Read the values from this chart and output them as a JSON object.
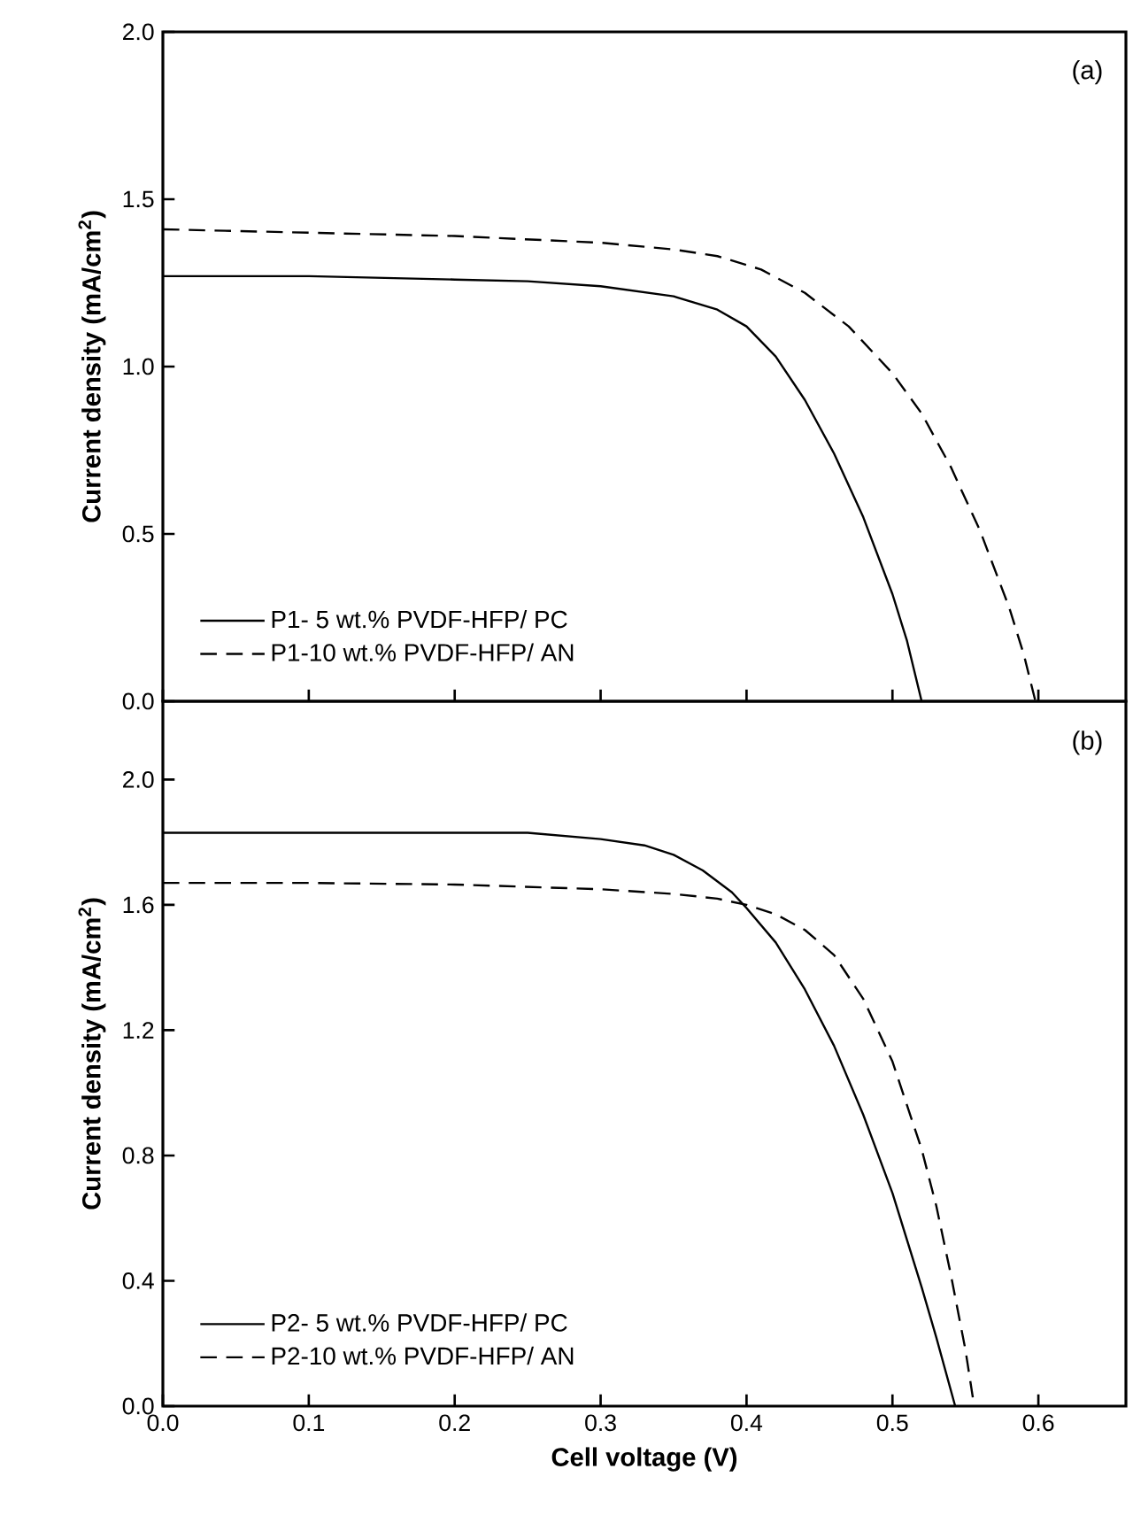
{
  "chart_data": [
    {
      "type": "line",
      "ylabel": "Current density (mA/cm$^{2}$)",
      "annotations": [
        "(a)"
      ],
      "xlim": [
        0,
        0.66
      ],
      "ylim": [
        0,
        2.0
      ],
      "xticks": [
        {
          "value": 0,
          "label": null
        },
        {
          "value": 0.1,
          "label": null
        },
        {
          "value": 0.2,
          "label": null
        },
        {
          "value": 0.3,
          "label": null
        },
        {
          "value": 0.4,
          "label": null
        },
        {
          "value": 0.5,
          "label": null
        },
        {
          "value": 0.6,
          "label": null
        }
      ],
      "yticks": [
        {
          "value": 0,
          "label": "0.0"
        },
        {
          "value": 0.5,
          "label": "0.5"
        },
        {
          "value": 1.0,
          "label": "1.0"
        },
        {
          "value": 1.5,
          "label": "1.5"
        },
        {
          "value": 2.0,
          "label": "2.0"
        }
      ],
      "tick_labels": "y",
      "legend": "bottom left",
      "grid": false,
      "marker": "none",
      "series": [
        {
          "name": "P1-  5 wt.% PVDF-HFP/ PC",
          "color": "#000000",
          "line_style": "solid",
          "x": [
            0,
            0.1,
            0.2,
            0.25,
            0.3,
            0.35,
            0.38,
            0.4,
            0.42,
            0.44,
            0.46,
            0.48,
            0.5,
            0.51,
            0.52
          ],
          "values": [
            1.27,
            1.27,
            1.26,
            1.255,
            1.24,
            1.21,
            1.17,
            1.12,
            1.03,
            0.9,
            0.74,
            0.55,
            0.32,
            0.18,
            0.0
          ]
        },
        {
          "name": "P1-10 wt.% PVDF-HFP/ AN",
          "color": "#000000",
          "line_style": "dashed",
          "x": [
            0,
            0.1,
            0.2,
            0.3,
            0.35,
            0.38,
            0.41,
            0.44,
            0.47,
            0.5,
            0.52,
            0.54,
            0.56,
            0.58,
            0.59,
            0.598
          ],
          "values": [
            1.41,
            1.4,
            1.39,
            1.37,
            1.35,
            1.33,
            1.29,
            1.22,
            1.12,
            0.98,
            0.86,
            0.7,
            0.51,
            0.28,
            0.14,
            0.0
          ]
        }
      ]
    },
    {
      "type": "line",
      "xlabel": "Cell voltage (V)",
      "ylabel": "Current density (mA/cm$^{2}$)",
      "annotations": [
        "(b)"
      ],
      "xlim": [
        0,
        0.66
      ],
      "ylim": [
        0,
        2.25
      ],
      "xticks": [
        {
          "value": 0,
          "label": "0.0"
        },
        {
          "value": 0.1,
          "label": "0.1"
        },
        {
          "value": 0.2,
          "label": "0.2"
        },
        {
          "value": 0.3,
          "label": "0.3"
        },
        {
          "value": 0.4,
          "label": "0.4"
        },
        {
          "value": 0.5,
          "label": "0.5"
        },
        {
          "value": 0.6,
          "label": "0.6"
        }
      ],
      "yticks": [
        {
          "value": 0,
          "label": "0.0"
        },
        {
          "value": 0.4,
          "label": "0.4"
        },
        {
          "value": 0.8,
          "label": "0.8"
        },
        {
          "value": 1.2,
          "label": "1.2"
        },
        {
          "value": 1.6,
          "label": "1.6"
        },
        {
          "value": 2.0,
          "label": "2.0"
        }
      ],
      "legend": "bottom left",
      "grid": false,
      "marker": "none",
      "series": [
        {
          "name": "P2-  5 wt.% PVDF-HFP/ PC",
          "color": "#000000",
          "line_style": "solid",
          "x": [
            0,
            0.1,
            0.2,
            0.25,
            0.3,
            0.33,
            0.35,
            0.37,
            0.39,
            0.4,
            0.42,
            0.44,
            0.46,
            0.48,
            0.5,
            0.52,
            0.53,
            0.543
          ],
          "values": [
            1.83,
            1.83,
            1.83,
            1.83,
            1.81,
            1.79,
            1.76,
            1.71,
            1.64,
            1.59,
            1.48,
            1.33,
            1.15,
            0.93,
            0.68,
            0.38,
            0.22,
            0.0
          ]
        },
        {
          "name": "P2-10 wt.% PVDF-HFP/ AN",
          "color": "#000000",
          "line_style": "dashed",
          "x": [
            0,
            0.1,
            0.2,
            0.3,
            0.35,
            0.38,
            0.4,
            0.42,
            0.44,
            0.46,
            0.48,
            0.5,
            0.52,
            0.53,
            0.54,
            0.55,
            0.556
          ],
          "values": [
            1.67,
            1.67,
            1.665,
            1.65,
            1.635,
            1.62,
            1.6,
            1.57,
            1.52,
            1.44,
            1.3,
            1.1,
            0.82,
            0.64,
            0.42,
            0.18,
            0.0
          ]
        }
      ]
    }
  ]
}
